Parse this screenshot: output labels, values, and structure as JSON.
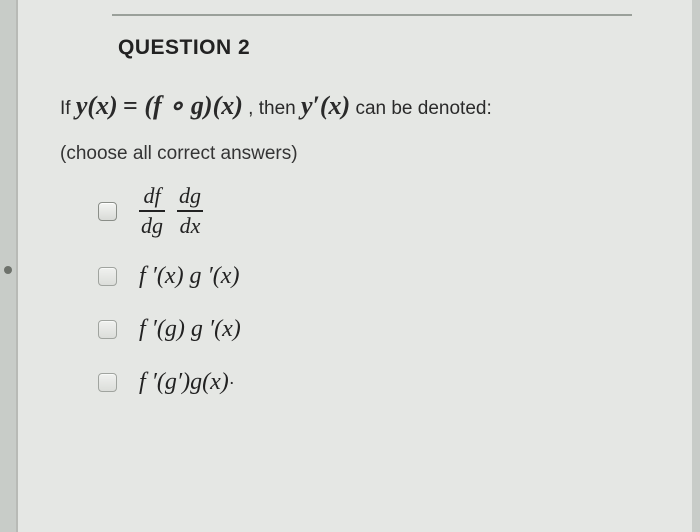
{
  "background_color": "#c8ccc8",
  "sheet_color": "#e5e7e4",
  "text_color": "#222222",
  "question": {
    "number_label": "QUESTION 2",
    "stem_prefix": "If ",
    "stem_lhs": "y(x)",
    "stem_eq": " = ",
    "stem_rhs": "(f ∘ g)(x)",
    "stem_mid": ", then ",
    "stem_yprime": "y′(x)",
    "stem_suffix": " can be denoted:",
    "instruction": "(choose all correct answers)"
  },
  "options": {
    "a": {
      "frac1_num": "df",
      "frac1_den": "dg",
      "frac2_num": "dg",
      "frac2_den": "dx",
      "checked": false
    },
    "b": {
      "label": "f ′(x) g ′(x)",
      "checked": false
    },
    "c": {
      "label": "f ′(g) g ′(x)",
      "checked": false
    },
    "d": {
      "label": "f ′(g′)g(x)",
      "dot": "·",
      "checked": false
    }
  },
  "style": {
    "title_fontsize": 21,
    "stem_fontsize": 19,
    "math_fontsize": 24,
    "checkbox_size": 17,
    "checkbox_border": "#8a8e88",
    "rule_color": "#9aa09a"
  }
}
